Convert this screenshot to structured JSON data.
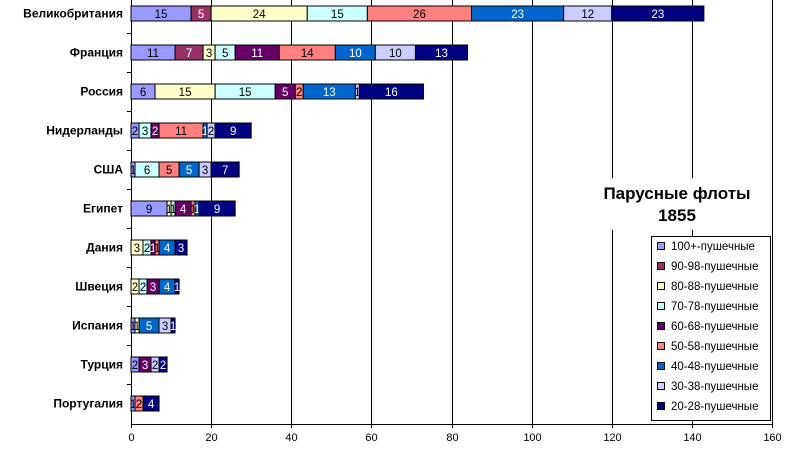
{
  "chart_data": {
    "type": "bar",
    "orientation": "horizontal",
    "stacked": true,
    "title": [
      "Парусные флоты",
      "1855"
    ],
    "xlim": [
      0,
      160
    ],
    "xticks": [
      0,
      20,
      40,
      60,
      80,
      100,
      120,
      140,
      160
    ],
    "grid": "vertical major gridlines",
    "legend_position": "bottom-right",
    "categories": [
      "Великобритания",
      "Франция",
      "Россия",
      "Нидерланды",
      "США",
      "Египет",
      "Дания",
      "Швеция",
      "Испания",
      "Турция",
      "Португалия"
    ],
    "series": [
      {
        "name": "100+-пушечные",
        "color": "#9999ff",
        "label_color": "#000000",
        "values": [
          15,
          11,
          6,
          2,
          1,
          9,
          0,
          0,
          1,
          2,
          1
        ]
      },
      {
        "name": "90-98-пушечные",
        "color": "#993366",
        "label_color": "#ffffff",
        "values": [
          5,
          7,
          0,
          0,
          0,
          0,
          0,
          0,
          0,
          0,
          0
        ]
      },
      {
        "name": "80-88-пушечные",
        "color": "#ffffcc",
        "label_color": "#000000",
        "values": [
          24,
          3,
          15,
          0,
          0,
          1,
          3,
          2,
          1,
          0,
          0
        ]
      },
      {
        "name": "70-78-пушечные",
        "color": "#ccffff",
        "label_color": "#000000",
        "values": [
          15,
          5,
          15,
          3,
          6,
          1,
          2,
          2,
          0,
          0,
          0
        ]
      },
      {
        "name": "60-68-пушечные",
        "color": "#660066",
        "label_color": "#ffffff",
        "values": [
          0,
          11,
          5,
          2,
          0,
          4,
          1,
          3,
          0,
          3,
          0
        ]
      },
      {
        "name": "50-58-пушечные",
        "color": "#ff8080",
        "label_color": "#000000",
        "values": [
          26,
          14,
          2,
          11,
          5,
          1,
          1,
          0,
          0,
          0,
          2
        ]
      },
      {
        "name": "40-48-пушечные",
        "color": "#0066cc",
        "label_color": "#ffffff",
        "values": [
          23,
          10,
          13,
          1,
          5,
          1,
          4,
          4,
          5,
          0,
          0
        ]
      },
      {
        "name": "30-38-пушечные",
        "color": "#ccccff",
        "label_color": "#000000",
        "values": [
          12,
          10,
          1,
          2,
          3,
          0,
          0,
          0,
          3,
          2,
          0
        ]
      },
      {
        "name": "20-28-пушечные",
        "color": "#000080",
        "label_color": "#ffffff",
        "values": [
          23,
          13,
          16,
          9,
          7,
          9,
          3,
          1,
          1,
          2,
          4
        ]
      }
    ]
  }
}
